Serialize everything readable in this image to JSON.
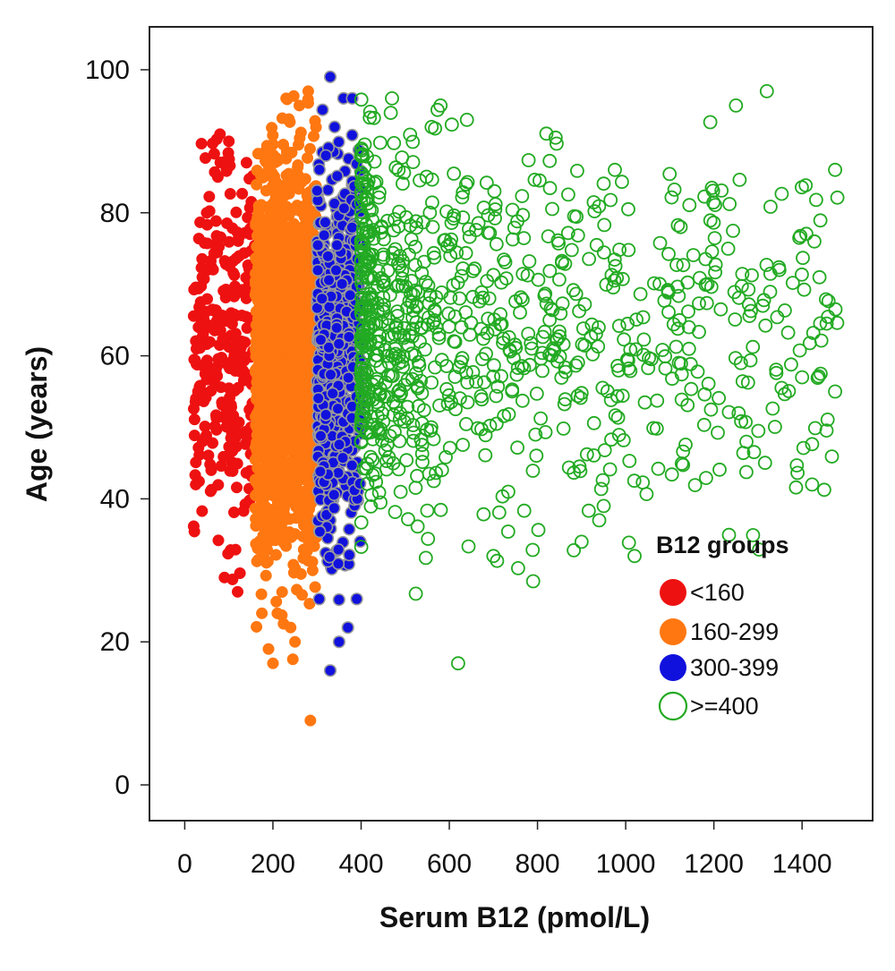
{
  "chart_data": {
    "type": "scatter",
    "xlabel": "Serum B12 (pmol/L)",
    "ylabel": "Age (years)",
    "xlim": [
      -80,
      1560
    ],
    "ylim": [
      -5,
      106
    ],
    "x_ticks": [
      0,
      200,
      400,
      600,
      800,
      1000,
      1200,
      1400
    ],
    "y_ticks": [
      0,
      20,
      40,
      60,
      80,
      100
    ],
    "grid": false,
    "legend": {
      "title": "B12 groups",
      "placement": "lower-right"
    },
    "series": [
      {
        "name": "<160",
        "color": "#ee1111",
        "marker": "filled-circle",
        "x_range": [
          20,
          159
        ],
        "y_range": [
          26,
          92
        ],
        "representative_points": [
          [
            25,
            42
          ],
          [
            30,
            55
          ],
          [
            40,
            71
          ],
          [
            50,
            80
          ],
          [
            60,
            44
          ],
          [
            75,
            85
          ],
          [
            80,
            91
          ],
          [
            90,
            29
          ],
          [
            100,
            90
          ],
          [
            110,
            45
          ],
          [
            120,
            27
          ],
          [
            130,
            62
          ],
          [
            140,
            87
          ],
          [
            150,
            50
          ]
        ]
      },
      {
        "name": "160-299",
        "color": "#ff7711",
        "marker": "filled-circle",
        "x_range": [
          160,
          299
        ],
        "y_range": [
          9,
          97
        ],
        "representative_points": [
          [
            175,
            24
          ],
          [
            190,
            19
          ],
          [
            200,
            17
          ],
          [
            210,
            24
          ],
          [
            230,
            96
          ],
          [
            240,
            22
          ],
          [
            250,
            20
          ],
          [
            260,
            95
          ],
          [
            280,
            97
          ],
          [
            285,
            9
          ],
          [
            290,
            30
          ]
        ]
      },
      {
        "name": "300-399",
        "color": "#1111dd",
        "marker": "filled-circle",
        "x_range": [
          300,
          399
        ],
        "y_range": [
          16,
          99
        ],
        "representative_points": [
          [
            305,
            26
          ],
          [
            320,
            88
          ],
          [
            330,
            99
          ],
          [
            330,
            16
          ],
          [
            340,
            92
          ],
          [
            350,
            20
          ],
          [
            360,
            96
          ],
          [
            370,
            22
          ],
          [
            380,
            96
          ],
          [
            390,
            26
          ]
        ]
      },
      {
        "name": ">=400",
        "color": "#22aa22",
        "marker": "open-circle",
        "x_range": [
          400,
          1480
        ],
        "y_range": [
          17,
          97
        ],
        "representative_points": [
          [
            470,
            96
          ],
          [
            560,
            92
          ],
          [
            580,
            95
          ],
          [
            620,
            17
          ],
          [
            640,
            93
          ],
          [
            700,
            32
          ],
          [
            900,
            34
          ],
          [
            940,
            37
          ],
          [
            1020,
            32
          ],
          [
            1250,
            95
          ],
          [
            1320,
            97
          ],
          [
            1400,
            57
          ],
          [
            1475,
            86
          ],
          [
            1475,
            55
          ]
        ]
      }
    ]
  }
}
